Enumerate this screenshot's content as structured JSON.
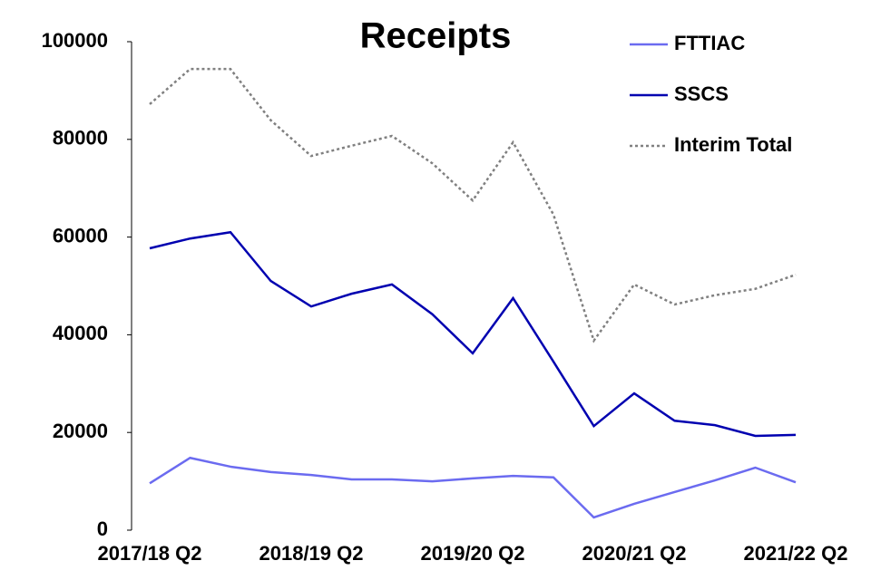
{
  "chart_data": {
    "type": "line",
    "title": "Receipts",
    "categories": [
      "2017/18 Q2",
      null,
      null,
      null,
      "2018/19 Q2",
      null,
      null,
      null,
      "2019/20 Q2",
      null,
      null,
      null,
      "2020/21 Q2",
      null,
      null,
      null,
      "2021/22 Q2"
    ],
    "series": [
      {
        "name": "FTTIAC",
        "color": "#6b6bf0",
        "style": "solid",
        "values": [
          9600,
          14800,
          13000,
          11900,
          11300,
          10400,
          10400,
          10000,
          10600,
          11100,
          10800,
          2600,
          5400,
          7800,
          10200,
          12800,
          9800
        ]
      },
      {
        "name": "SSCS",
        "color": "#0000b0",
        "style": "solid",
        "values": [
          57700,
          59700,
          61000,
          51000,
          45800,
          48400,
          50300,
          44200,
          36200,
          47500,
          34500,
          21300,
          28000,
          22400,
          21500,
          19300,
          19500
        ]
      },
      {
        "name": "Interim Total",
        "color": "#808080",
        "style": "dotted",
        "values": [
          87200,
          94400,
          94400,
          83900,
          76600,
          78700,
          80700,
          75100,
          67500,
          79400,
          64600,
          38800,
          50300,
          46200,
          48100,
          49400,
          52300
        ]
      }
    ],
    "ylim": [
      0,
      100000
    ],
    "yticks": [
      0,
      20000,
      40000,
      60000,
      80000,
      100000
    ],
    "grid": false,
    "legend": "top-right"
  }
}
